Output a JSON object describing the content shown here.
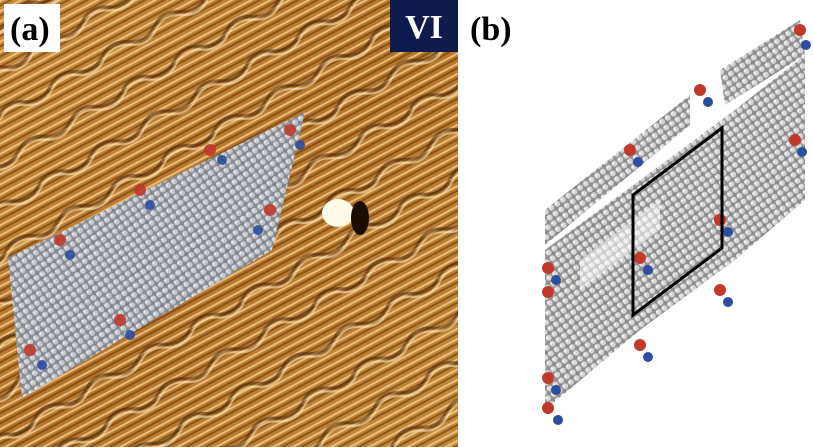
{
  "panel_a": {
    "label": "(a)",
    "badge": "VI"
  },
  "panel_b": {
    "label": "(b)"
  }
}
